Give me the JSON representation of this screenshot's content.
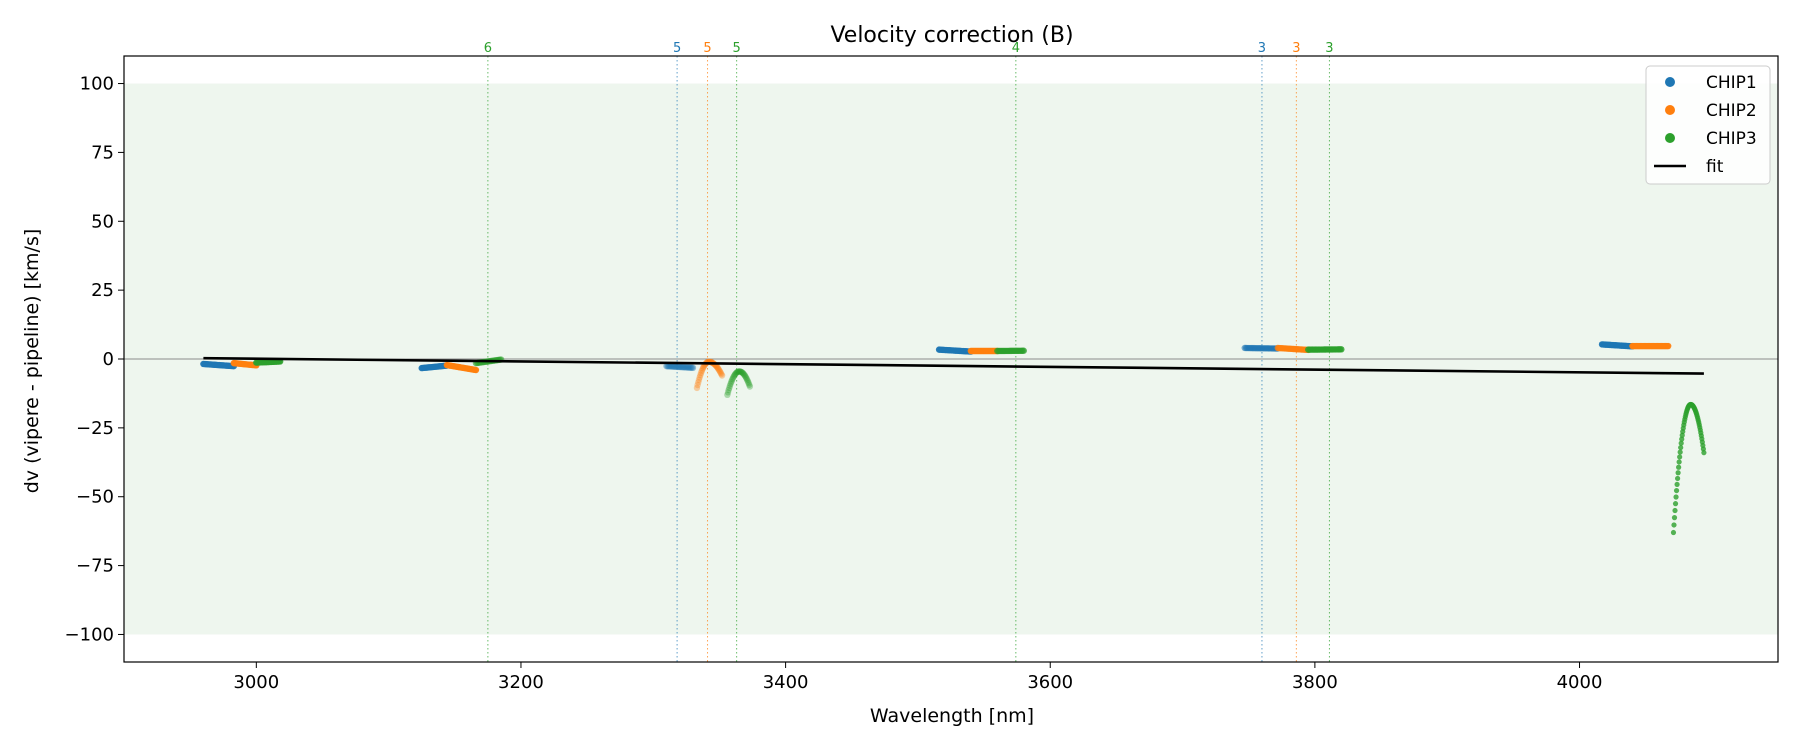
{
  "chart_data": {
    "type": "scatter",
    "title": "Velocity correction (B)",
    "xlabel": "Wavelength [nm]",
    "ylabel": "dv (vipere - pipeline) [km/s]",
    "xlim": [
      2900,
      4150
    ],
    "ylim": [
      -110,
      110
    ],
    "x_ticks": [
      3000,
      3200,
      3400,
      3600,
      3800,
      4000
    ],
    "y_ticks": [
      100,
      75,
      50,
      25,
      0,
      -25,
      -50,
      -75,
      -100
    ],
    "shaded_band": {
      "y_from": -100,
      "y_to": 100,
      "color": "#eef6ee"
    },
    "zero_line": 0,
    "grid": false,
    "legend_position": "top-right",
    "colors": {
      "CHIP1": "#1f77b4",
      "CHIP2": "#ff7f0e",
      "CHIP3": "#2ca02c",
      "fit": "#000000"
    },
    "vertical_lines": [
      {
        "x": 3175,
        "label": "6",
        "series": "CHIP3"
      },
      {
        "x": 3318,
        "label": "5",
        "series": "CHIP1"
      },
      {
        "x": 3341,
        "label": "5",
        "series": "CHIP2"
      },
      {
        "x": 3363,
        "label": "5",
        "series": "CHIP3"
      },
      {
        "x": 3574,
        "label": "4",
        "series": "CHIP3"
      },
      {
        "x": 3760,
        "label": "3",
        "series": "CHIP1"
      },
      {
        "x": 3786,
        "label": "3",
        "series": "CHIP2"
      },
      {
        "x": 3811,
        "label": "3",
        "series": "CHIP3"
      }
    ],
    "series": [
      {
        "name": "CHIP1",
        "segments": [
          {
            "shape": "flat",
            "x0": 2960,
            "x1": 2983,
            "y0": -1.8,
            "y1": -2.6,
            "n": 26,
            "opacity": 0.95
          },
          {
            "shape": "flat",
            "x0": 3125,
            "x1": 3144,
            "y0": -3.3,
            "y1": -2.4,
            "n": 22,
            "opacity": 0.95
          },
          {
            "shape": "flat",
            "x0": 3310,
            "x1": 3330,
            "y0": -2.6,
            "y1": -3.2,
            "n": 22,
            "opacity": 0.45
          },
          {
            "shape": "flat",
            "x0": 3516,
            "x1": 3540,
            "y0": 3.4,
            "y1": 2.7,
            "n": 26,
            "opacity": 0.95
          },
          {
            "shape": "flat",
            "x0": 3747,
            "x1": 3772,
            "y0": 4.0,
            "y1": 3.8,
            "n": 26,
            "opacity": 0.6
          },
          {
            "shape": "flat",
            "x0": 4017,
            "x1": 4040,
            "y0": 5.3,
            "y1": 4.6,
            "n": 26,
            "opacity": 0.95
          }
        ]
      },
      {
        "name": "CHIP2",
        "segments": [
          {
            "shape": "flat",
            "x0": 2983,
            "x1": 3000,
            "y0": -1.5,
            "y1": -2.3,
            "n": 20,
            "opacity": 0.95
          },
          {
            "shape": "flat",
            "x0": 3144,
            "x1": 3166,
            "y0": -2.2,
            "y1": -4.0,
            "n": 24,
            "opacity": 0.95
          },
          {
            "shape": "arc",
            "x0": 3333,
            "x1": 3352,
            "peak_x": 3342,
            "peak_y": -1.0,
            "y_start": -10.5,
            "y_end": -6.0,
            "n": 38,
            "opacity": 0.35
          },
          {
            "shape": "flat",
            "x0": 3540,
            "x1": 3560,
            "y0": 2.9,
            "y1": 2.9,
            "n": 24,
            "opacity": 0.95
          },
          {
            "shape": "flat",
            "x0": 3772,
            "x1": 3795,
            "y0": 4.0,
            "y1": 3.3,
            "n": 24,
            "opacity": 0.8
          },
          {
            "shape": "flat",
            "x0": 4040,
            "x1": 4067,
            "y0": 4.7,
            "y1": 4.7,
            "n": 28,
            "opacity": 0.95
          }
        ]
      },
      {
        "name": "CHIP3",
        "segments": [
          {
            "shape": "flat",
            "x0": 3000,
            "x1": 3018,
            "y0": -1.3,
            "y1": -0.9,
            "n": 20,
            "opacity": 0.9
          },
          {
            "shape": "flat",
            "x0": 3166,
            "x1": 3185,
            "y0": -1.5,
            "y1": -0.2,
            "n": 20,
            "opacity": 0.6
          },
          {
            "shape": "arc",
            "x0": 3356,
            "x1": 3373,
            "peak_x": 3365,
            "peak_y": -4.5,
            "y_start": -13.0,
            "y_end": -10.0,
            "n": 36,
            "opacity": 0.35
          },
          {
            "shape": "flat",
            "x0": 3560,
            "x1": 3580,
            "y0": 2.9,
            "y1": 3.0,
            "n": 22,
            "opacity": 0.75
          },
          {
            "shape": "flat",
            "x0": 3795,
            "x1": 3820,
            "y0": 3.4,
            "y1": 3.5,
            "n": 24,
            "opacity": 0.85
          },
          {
            "shape": "arc",
            "x0": 4071,
            "x1": 4094,
            "peak_x": 4084,
            "peak_y": -16.5,
            "y_start": -63.0,
            "y_end": -34.0,
            "n": 60,
            "opacity": 0.8,
            "size": 2.6
          }
        ]
      }
    ],
    "fit": {
      "name": "fit",
      "x": [
        2960,
        4094
      ],
      "y": [
        0.3,
        -5.3
      ]
    },
    "legend": [
      "CHIP1",
      "CHIP2",
      "CHIP3",
      "fit"
    ]
  }
}
